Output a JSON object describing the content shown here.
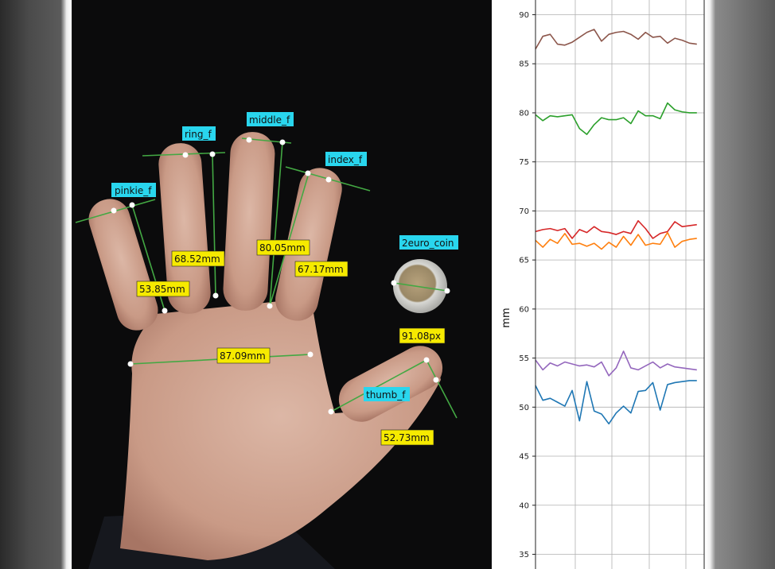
{
  "camera": {
    "finger_labels": [
      {
        "id": "pinkie",
        "text": "pinkie_f"
      },
      {
        "id": "ring",
        "text": "ring_f"
      },
      {
        "id": "middle",
        "text": "middle_f"
      },
      {
        "id": "index",
        "text": "index_f"
      },
      {
        "id": "coin",
        "text": "2euro_coin"
      },
      {
        "id": "thumb",
        "text": "thumb_f"
      }
    ],
    "measurements": [
      {
        "id": "ring",
        "text": "68.52mm"
      },
      {
        "id": "middle",
        "text": "80.05mm"
      },
      {
        "id": "index",
        "text": "67.17mm"
      },
      {
        "id": "pinkie",
        "text": "53.85mm"
      },
      {
        "id": "palm",
        "text": "87.09mm"
      },
      {
        "id": "coin",
        "text": "91.08px"
      },
      {
        "id": "thumb",
        "text": "52.73mm"
      }
    ],
    "colors": {
      "label_cyan": "#29d6ee",
      "label_yellow": "#f6ea00",
      "line_green": "#43a843",
      "point_white": "#ffffff"
    }
  },
  "chart_data": {
    "type": "line",
    "ylabel": "mm",
    "ylim": [
      33.5,
      91.5
    ],
    "yticks": [
      35,
      40,
      45,
      50,
      55,
      60,
      65,
      70,
      75,
      80,
      85,
      90
    ],
    "grid": true,
    "xlim": [
      0,
      23
    ],
    "x": [
      0,
      1,
      2,
      3,
      4,
      5,
      6,
      7,
      8,
      9,
      10,
      11,
      12,
      13,
      14,
      15,
      16,
      17,
      18,
      19,
      20,
      21,
      22
    ],
    "series": [
      {
        "color": "#8c564b",
        "values": [
          86.5,
          87.8,
          88.0,
          87.0,
          86.9,
          87.2,
          87.7,
          88.2,
          88.5,
          87.3,
          88.0,
          88.2,
          88.3,
          88.0,
          87.5,
          88.2,
          87.7,
          87.8,
          87.1,
          87.6,
          87.4,
          87.1,
          87.0
        ]
      },
      {
        "color": "#2ca02c",
        "values": [
          79.8,
          79.2,
          79.7,
          79.6,
          79.7,
          79.8,
          78.4,
          77.8,
          78.8,
          79.5,
          79.3,
          79.3,
          79.5,
          78.9,
          80.2,
          79.7,
          79.7,
          79.4,
          81.0,
          80.3,
          80.1,
          80.0,
          80.0
        ]
      },
      {
        "color": "#d62728",
        "values": [
          67.9,
          68.1,
          68.2,
          68.0,
          68.2,
          67.2,
          68.1,
          67.8,
          68.4,
          67.9,
          67.8,
          67.6,
          67.9,
          67.7,
          69.0,
          68.2,
          67.2,
          67.7,
          67.9,
          68.9,
          68.4,
          68.5,
          68.6
        ]
      },
      {
        "color": "#ff7f0e",
        "values": [
          67.0,
          66.3,
          67.1,
          66.7,
          67.7,
          66.6,
          66.7,
          66.4,
          66.7,
          66.1,
          66.8,
          66.3,
          67.4,
          66.5,
          67.6,
          66.5,
          66.7,
          66.6,
          67.8,
          66.3,
          66.9,
          67.1,
          67.2
        ]
      },
      {
        "color": "#9467bd",
        "values": [
          54.8,
          53.8,
          54.5,
          54.2,
          54.6,
          54.4,
          54.2,
          54.3,
          54.1,
          54.6,
          53.2,
          54.0,
          55.7,
          54.0,
          53.8,
          54.2,
          54.6,
          54.0,
          54.4,
          54.1,
          54.0,
          53.9,
          53.8
        ]
      },
      {
        "color": "#1f77b4",
        "values": [
          52.2,
          50.7,
          50.9,
          50.5,
          50.1,
          51.7,
          48.6,
          52.6,
          49.6,
          49.3,
          48.3,
          49.4,
          50.1,
          49.4,
          51.6,
          51.7,
          52.5,
          49.7,
          52.3,
          52.5,
          52.6,
          52.7,
          52.7
        ]
      }
    ]
  }
}
